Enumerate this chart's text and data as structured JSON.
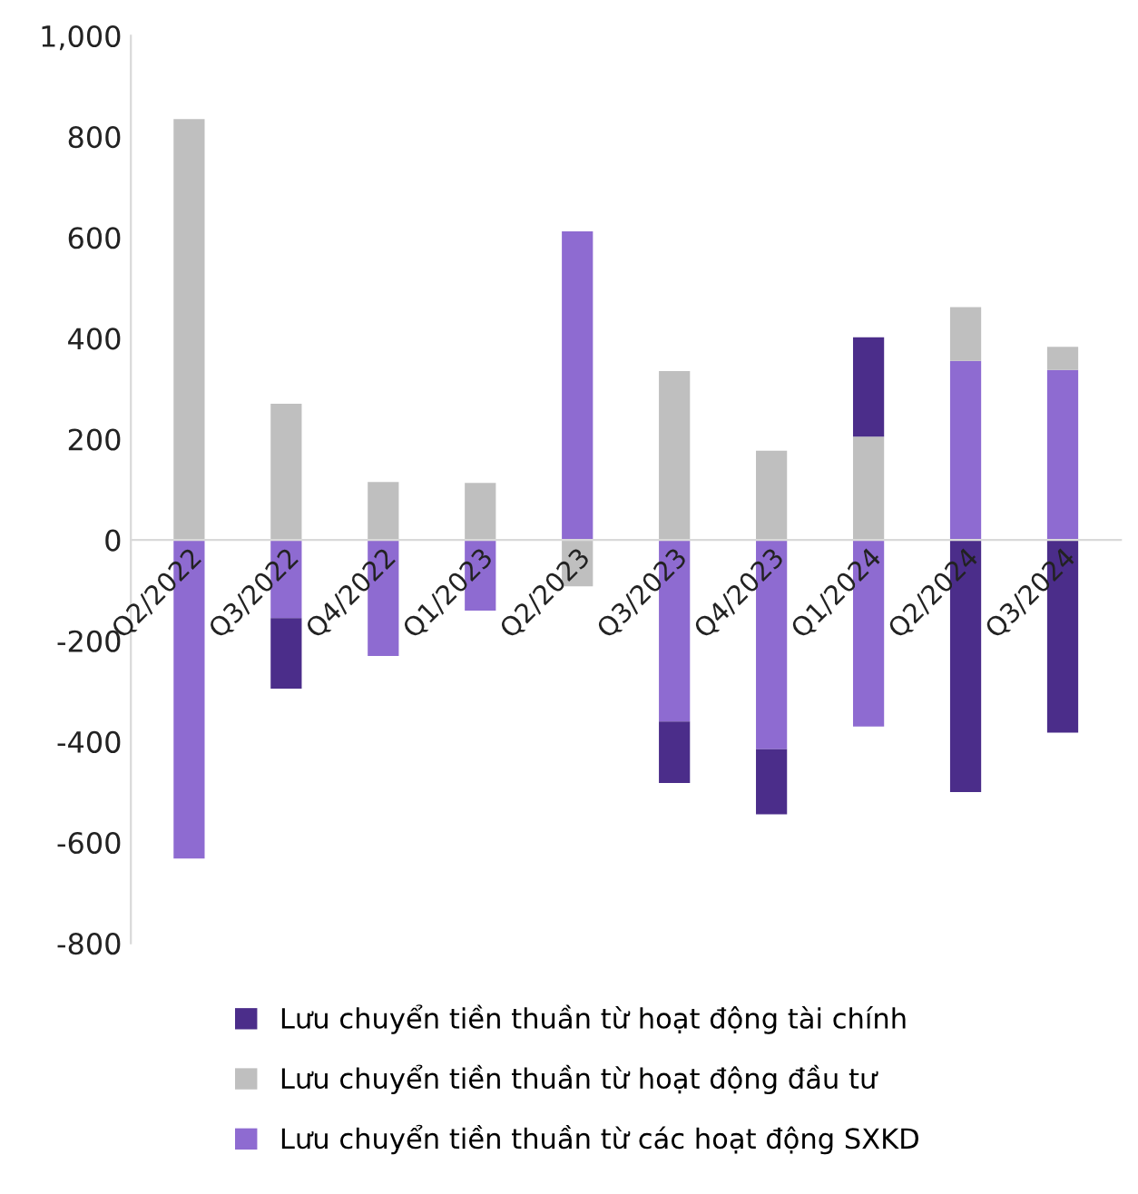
{
  "chart_data": {
    "type": "bar",
    "stacked": true,
    "categories": [
      "Q2/2022",
      "Q3/2022",
      "Q4/2022",
      "Q1/2023",
      "Q2/2023",
      "Q3/2023",
      "Q4/2023",
      "Q1/2024",
      "Q2/2024",
      "Q3/2024"
    ],
    "series": [
      {
        "name": "Lưu chuyển tiền thuần từ các hoạt động SXKD",
        "color": "#8e6bd1",
        "values": [
          -632,
          -155,
          -230,
          -140,
          612,
          -360,
          -415,
          -370,
          355,
          337
        ]
      },
      {
        "name": "Lưu chuyển tiền thuần từ hoạt động đầu tư",
        "color": "#bfbfbf",
        "values": [
          835,
          270,
          115,
          113,
          -92,
          335,
          177,
          205,
          107,
          46
        ]
      },
      {
        "name": "Lưu chuyển tiền thuần từ hoạt động tài chính",
        "color": "#4b2d8a",
        "values": [
          0,
          -140,
          0,
          0,
          0,
          -122,
          -129,
          197,
          -500,
          -382
        ]
      }
    ],
    "ylim": [
      -800,
      1000
    ],
    "yticks": [
      {
        "value": -800,
        "label": "-800"
      },
      {
        "value": -600,
        "label": "-600"
      },
      {
        "value": -400,
        "label": "-400"
      },
      {
        "value": -200,
        "label": "-200"
      },
      0,
      200,
      400,
      600,
      800,
      {
        "value": 1000,
        "label": "1,000"
      }
    ],
    "grid": false,
    "legend": "bottom"
  }
}
